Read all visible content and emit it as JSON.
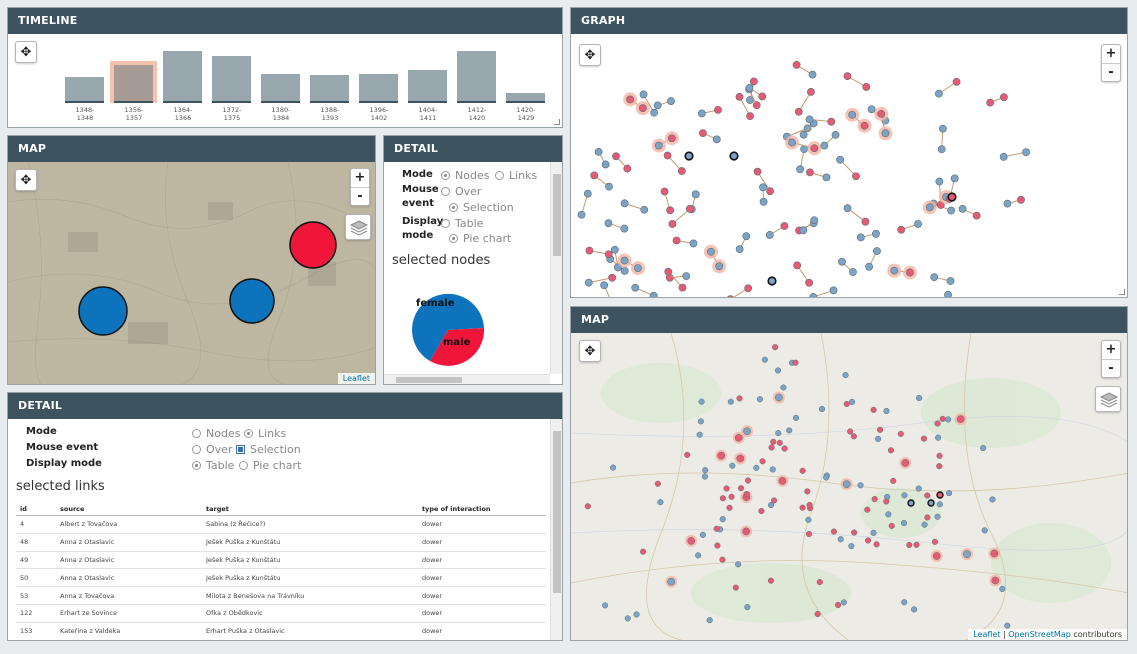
{
  "timeline": {
    "title": "TIMELINE",
    "bars": [
      {
        "label_top": "1348-",
        "label_bottom": "1348",
        "value": 0.43,
        "selected": false
      },
      {
        "label_top": "1356-",
        "label_bottom": "1357",
        "value": 0.63,
        "selected": true
      },
      {
        "label_top": "1364-",
        "label_bottom": "1366",
        "value": 0.87,
        "selected": false
      },
      {
        "label_top": "1372-",
        "label_bottom": "1375",
        "value": 0.79,
        "selected": false
      },
      {
        "label_top": "1380-",
        "label_bottom": "1384",
        "value": 0.49,
        "selected": false
      },
      {
        "label_top": "1388-",
        "label_bottom": "1393",
        "value": 0.47,
        "selected": false
      },
      {
        "label_top": "1396-",
        "label_bottom": "1402",
        "value": 0.49,
        "selected": false
      },
      {
        "label_top": "1404-",
        "label_bottom": "1411",
        "value": 0.55,
        "selected": false
      },
      {
        "label_top": "1412-",
        "label_bottom": "1420",
        "value": 0.87,
        "selected": false
      },
      {
        "label_top": "1420-",
        "label_bottom": "1429",
        "value": 0.17,
        "selected": false
      }
    ]
  },
  "map_small": {
    "title": "MAP",
    "zoom_in": "+",
    "zoom_out": "-",
    "attribution": "Leaflet"
  },
  "detail_small": {
    "title": "DETAIL",
    "mode_label": "Mode",
    "mode_nodes": "Nodes",
    "mode_links": "Links",
    "mouse_label_1": "Mouse",
    "mouse_label_2": "event",
    "mouse_over": "Over",
    "mouse_selection": "Selection",
    "display_label_1": "Display",
    "display_label_2": "mode",
    "display_table": "Table",
    "display_pie": "Pie chart",
    "selected_title": "selected nodes",
    "pie_female": "female",
    "pie_male": "male"
  },
  "detail_large": {
    "title": "DETAIL",
    "mode_label": "Mode",
    "mode_nodes": "Nodes",
    "mode_links": "Links",
    "mouse_label": "Mouse event",
    "mouse_over": "Over",
    "mouse_selection": "Selection",
    "display_label": "Display mode",
    "display_table": "Table",
    "display_pie": "Pie chart",
    "selected_title": "selected links",
    "columns": [
      "id",
      "source",
      "target",
      "type of interaction"
    ],
    "rows": [
      [
        "4",
        "Albert z Tovačova",
        "Sabina (z Řečice?)",
        "dower"
      ],
      [
        "48",
        "Anna z Otaslavic",
        "Ješek Puška z Kunštátu",
        "dower"
      ],
      [
        "49",
        "Anna z Otaslavic",
        "Ješek Puška z Kunštátu",
        "dower"
      ],
      [
        "50",
        "Anna z Otaslavic",
        "Ješek Puška z Kunštátu",
        "dower"
      ],
      [
        "53",
        "Anna z Tovačova",
        "Milota z Benešova na Trávníku",
        "dower"
      ],
      [
        "122",
        "Erhart ze Sovince",
        "Ofka z Obědkovic",
        "dower"
      ],
      [
        "153",
        "Kateřina z Valdeka",
        "Erhart Puška z Otaslavic",
        "dower"
      ]
    ]
  },
  "graph": {
    "title": "GRAPH",
    "zoom_in": "+",
    "zoom_out": "-"
  },
  "map_large": {
    "title": "MAP",
    "zoom_in": "+",
    "zoom_out": "-",
    "attribution_leaflet": "Leaflet",
    "attribution_sep": " | ",
    "attribution_osm": "OpenStreetMap",
    "attribution_rest": " contributors"
  },
  "colors": {
    "header": "#3d5360",
    "female": "#0d73bd",
    "male": "#f0163a",
    "node_blue": "#7ba3c5",
    "node_red": "#e85a73"
  }
}
